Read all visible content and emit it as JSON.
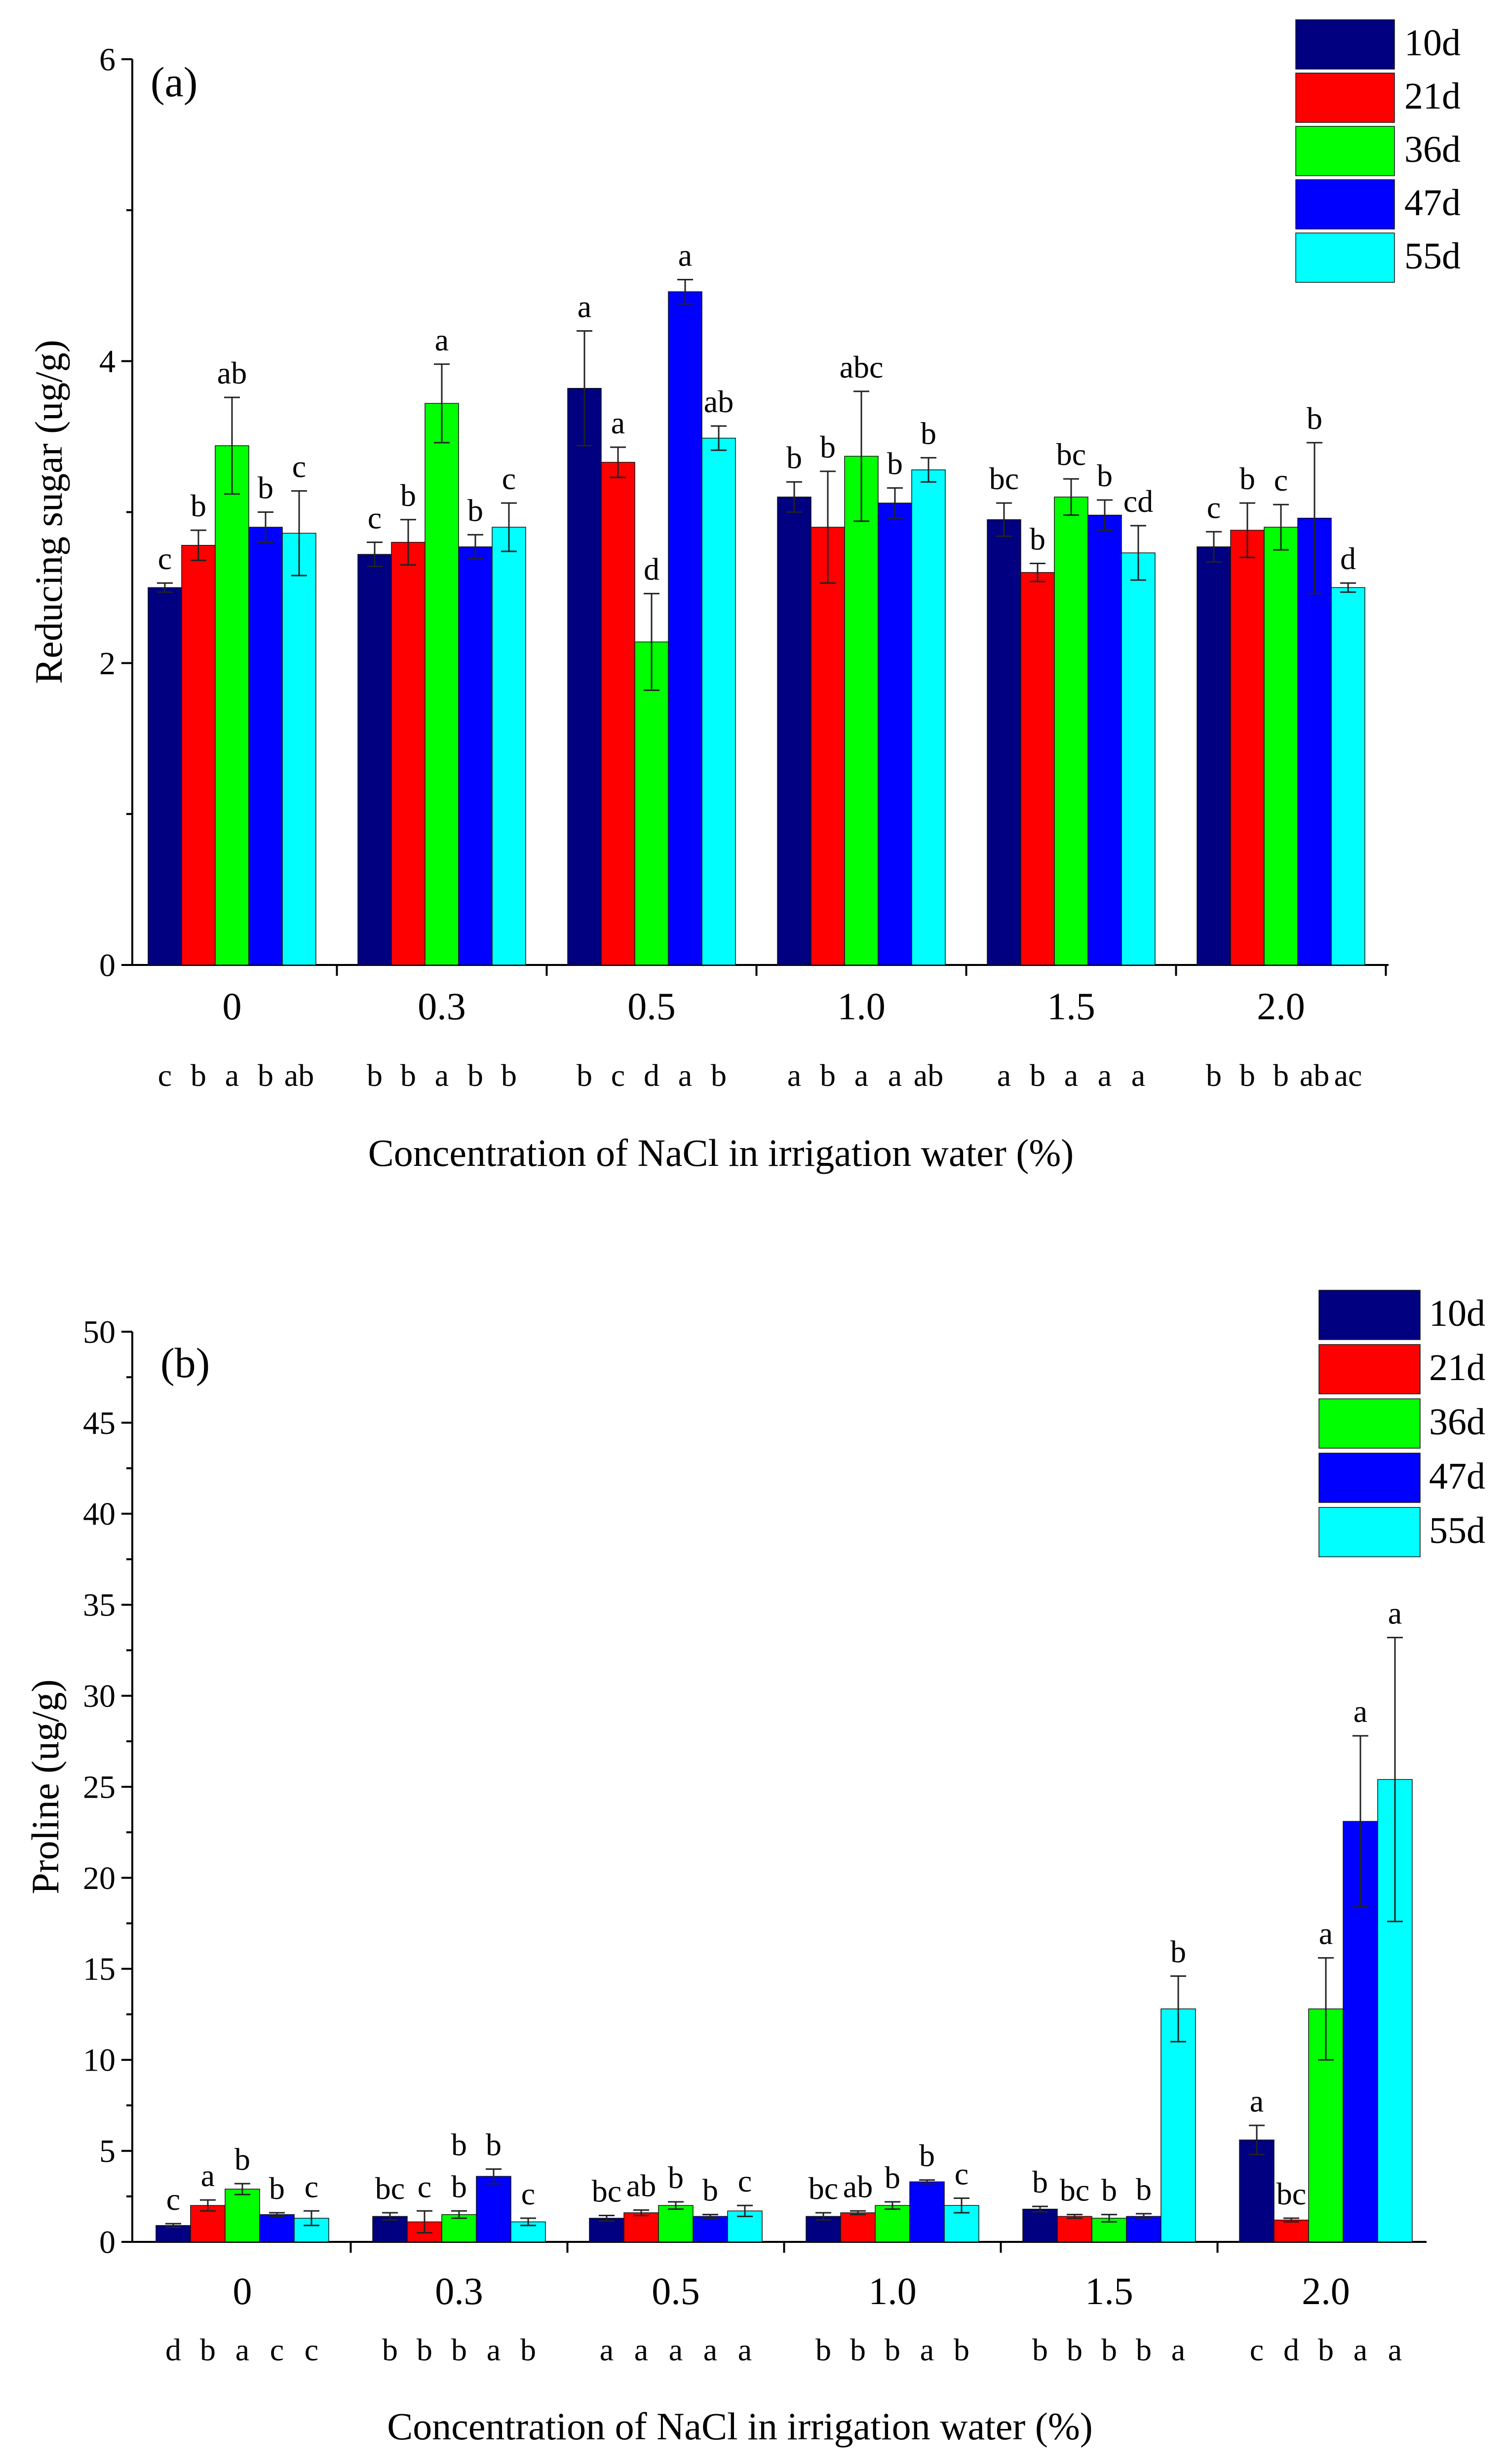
{
  "chart_data": [
    {
      "type": "bar",
      "panel_label": "(a)",
      "ylabel": "Reducing sugar (ug/g)",
      "xlabel": "Concentration of NaCl in irrigation water (%)",
      "ylim": [
        0,
        6
      ],
      "yticks": [
        "0",
        "2",
        "4",
        "6"
      ],
      "categories": [
        "0",
        "0.3",
        "0.5",
        "1.0",
        "1.5",
        "2.0"
      ],
      "series": [
        {
          "name": "10d",
          "color": "#000080",
          "values": [
            2.5,
            2.72,
            3.82,
            3.1,
            2.95,
            2.77
          ],
          "errors": [
            0.03,
            0.08,
            0.38,
            0.1,
            0.11,
            0.1
          ],
          "labels": [
            "c",
            "c",
            "a",
            "b",
            "bc",
            "c"
          ]
        },
        {
          "name": "21d",
          "color": "#ff0000",
          "values": [
            2.78,
            2.8,
            3.33,
            2.9,
            2.6,
            2.88
          ],
          "errors": [
            0.1,
            0.15,
            0.1,
            0.37,
            0.06,
            0.18
          ],
          "labels": [
            "b",
            "b",
            "a",
            "b",
            "b",
            "b"
          ]
        },
        {
          "name": "36d",
          "color": "#00ff00",
          "values": [
            3.44,
            3.72,
            2.14,
            3.37,
            3.1,
            2.9
          ],
          "errors": [
            0.32,
            0.26,
            0.32,
            0.43,
            0.12,
            0.15
          ],
          "labels": [
            "ab",
            "a",
            "d",
            "abc",
            "bc",
            "c"
          ]
        },
        {
          "name": "47d",
          "color": "#0000ff",
          "values": [
            2.9,
            2.77,
            4.46,
            3.06,
            2.98,
            2.96
          ],
          "errors": [
            0.1,
            0.08,
            0.08,
            0.1,
            0.1,
            0.5
          ],
          "labels": [
            "b",
            "b",
            "a",
            "b",
            "b",
            "b"
          ]
        },
        {
          "name": "55d",
          "color": "#00ffff",
          "values": [
            2.86,
            2.9,
            3.49,
            3.28,
            2.73,
            2.5
          ],
          "errors": [
            0.28,
            0.16,
            0.08,
            0.08,
            0.18,
            0.03
          ],
          "labels": [
            "c",
            "c",
            "ab",
            "b",
            "cd",
            "d"
          ]
        }
      ],
      "bottom_letters": [
        [
          "c",
          "b",
          "a",
          "b",
          "ab"
        ],
        [
          "b",
          "b",
          "a",
          "b",
          "b"
        ],
        [
          "b",
          "c",
          "d",
          "a",
          "b"
        ],
        [
          "a",
          "b",
          "a",
          "a",
          "ab"
        ],
        [
          "a",
          "b",
          "a",
          "a",
          "a"
        ],
        [
          "b",
          "b",
          "b",
          "ab",
          "ac"
        ]
      ],
      "legend_position": "top-right"
    },
    {
      "type": "bar",
      "panel_label": "(b)",
      "ylabel": "Proline (ug/g)",
      "xlabel": "Concentration of NaCl in irrigation water (%)",
      "ylim": [
        0,
        50
      ],
      "yticks": [
        "0",
        "5",
        "10",
        "15",
        "20",
        "25",
        "30",
        "35",
        "40",
        "45",
        "50"
      ],
      "categories": [
        "0",
        "0.3",
        "0.5",
        "1.0",
        "1.5",
        "2.0"
      ],
      "series": [
        {
          "name": "10d",
          "color": "#000080",
          "values": [
            0.9,
            1.4,
            1.3,
            1.4,
            1.8,
            5.6
          ],
          "errors": [
            0.1,
            0.2,
            0.15,
            0.2,
            0.15,
            0.8
          ],
          "labels": [
            "c",
            "bc",
            "bc",
            "bc",
            "b",
            "a"
          ]
        },
        {
          "name": "21d",
          "color": "#ff0000",
          "values": [
            2.0,
            1.1,
            1.6,
            1.6,
            1.4,
            1.2
          ],
          "errors": [
            0.3,
            0.6,
            0.15,
            0.1,
            0.1,
            0.1
          ],
          "labels": [
            "a",
            "c",
            "ab",
            "ab",
            "bc",
            "bc"
          ]
        },
        {
          "name": "36d",
          "color": "#00ff00",
          "values": [
            2.9,
            1.5,
            2.0,
            2.0,
            1.3,
            12.8
          ],
          "errors": [
            0.3,
            0.2,
            0.2,
            0.2,
            0.2,
            2.8
          ],
          "labels": [
            "b",
            "b",
            "b",
            "b",
            "b",
            "a"
          ]
        },
        {
          "name": "47d",
          "color": "#0000ff",
          "values": [
            1.5,
            3.6,
            1.4,
            3.3,
            1.4,
            23.1
          ],
          "errors": [
            0.1,
            0.4,
            0.1,
            0.1,
            0.15,
            4.7
          ],
          "labels": [
            "b",
            "b",
            "b",
            "b",
            "b",
            "a"
          ]
        },
        {
          "name": "55d",
          "color": "#00ffff",
          "values": [
            1.3,
            1.1,
            1.7,
            2.0,
            12.8,
            25.4
          ],
          "errors": [
            0.4,
            0.2,
            0.3,
            0.4,
            1.8,
            7.8
          ],
          "labels": [
            "c",
            "c",
            "c",
            "c",
            "b",
            "a"
          ]
        }
      ],
      "bottom_letters": [
        [
          "d",
          "b",
          "a",
          "c",
          "c"
        ],
        [
          "b",
          "b",
          "b",
          "a",
          "b"
        ],
        [
          "a",
          "a",
          "a",
          "a",
          "a"
        ],
        [
          "b",
          "b",
          "b",
          "a",
          "b"
        ],
        [
          "b",
          "b",
          "b",
          "b",
          "a"
        ],
        [
          "c",
          "d",
          "b",
          "a",
          "a"
        ]
      ],
      "extra_letters": [
        {
          "category": 1,
          "series": 3,
          "text": "b"
        }
      ],
      "legend_position": "top-right"
    }
  ]
}
